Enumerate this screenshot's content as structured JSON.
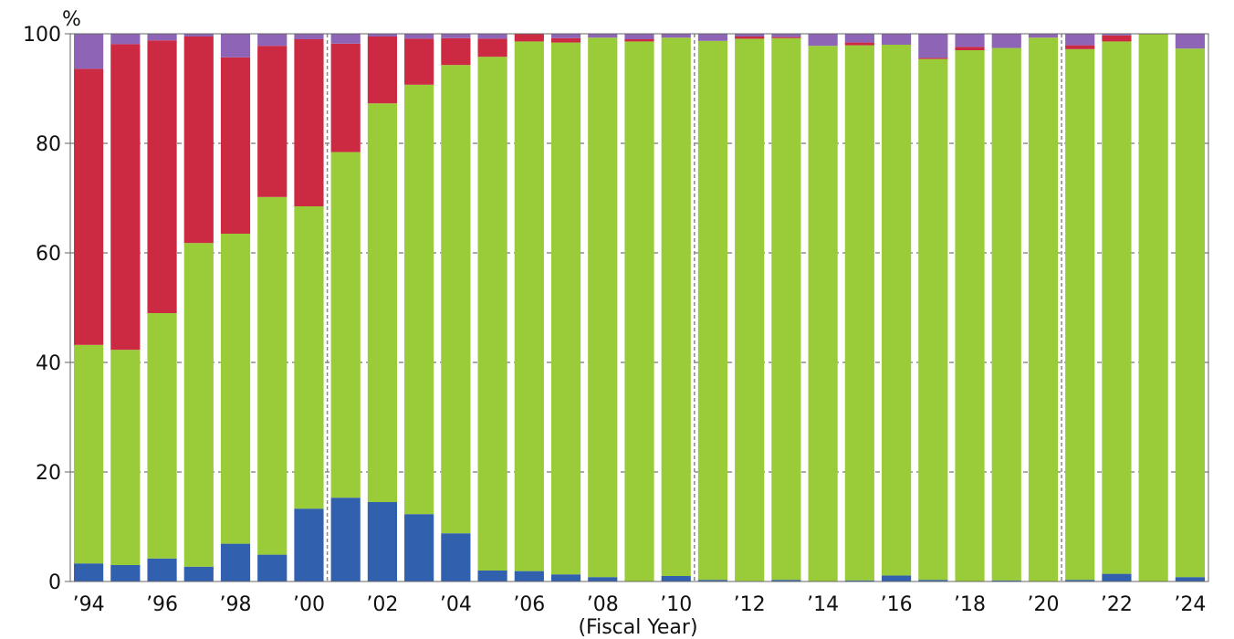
{
  "chart_data": {
    "type": "bar",
    "stacked": true,
    "xlabel": "(Fiscal Year)",
    "ylabel": "%",
    "ylim": [
      0,
      100
    ],
    "yticks": [
      0,
      20,
      40,
      60,
      80,
      100
    ],
    "grid": "horizontal dashed",
    "categories": [
      "1994",
      "1995",
      "1996",
      "1997",
      "1998",
      "1999",
      "2000",
      "2001",
      "2002",
      "2003",
      "2004",
      "2005",
      "2006",
      "2007",
      "2008",
      "2009",
      "2010",
      "2011",
      "2012",
      "2013",
      "2014",
      "2015",
      "2016",
      "2017",
      "2018",
      "2019",
      "2020",
      "2021",
      "2022",
      "2023",
      "2024"
    ],
    "tick_labels": [
      "’94",
      "’96",
      "’98",
      "’00",
      "’02",
      "’04",
      "’06",
      "’08",
      "’10",
      "’12",
      "’14",
      "’16",
      "’18",
      "’20",
      "’22",
      "’24"
    ],
    "divider_after": [
      "2000",
      "2010",
      "2020"
    ],
    "series": [
      {
        "color": "#3060AE",
        "values": [
          3.3,
          3.0,
          4.2,
          2.7,
          6.9,
          4.9,
          13.3,
          15.3,
          14.5,
          12.3,
          8.8,
          2.0,
          1.9,
          1.3,
          0.8,
          0.0,
          1.0,
          0.3,
          0.1,
          0.3,
          0.0,
          0.2,
          1.1,
          0.3,
          0.0,
          0.2,
          0.0,
          0.3,
          1.4,
          0.0,
          0.8
        ]
      },
      {
        "color": "#99CC38",
        "values": [
          39.9,
          39.3,
          44.8,
          59.1,
          56.6,
          65.3,
          55.2,
          63.1,
          72.8,
          78.4,
          85.5,
          93.8,
          96.7,
          97.1,
          98.5,
          98.6,
          98.3,
          98.4,
          99.0,
          98.9,
          97.8,
          97.7,
          96.9,
          95.1,
          97.0,
          97.2,
          99.3,
          96.9,
          97.2,
          100.0,
          96.5
        ]
      },
      {
        "color": "#CC2A42",
        "values": [
          50.4,
          55.8,
          49.8,
          37.7,
          32.2,
          27.6,
          30.5,
          19.8,
          12.2,
          8.4,
          4.9,
          3.3,
          1.4,
          0.8,
          0.0,
          0.4,
          0.0,
          0.0,
          0.4,
          0.2,
          0.0,
          0.5,
          0.0,
          0.2,
          0.6,
          0.0,
          0.0,
          0.7,
          1.1,
          0.0,
          0.0
        ]
      },
      {
        "color": "#8E64B6",
        "values": [
          6.4,
          1.9,
          1.2,
          0.5,
          4.3,
          2.2,
          1.0,
          1.8,
          0.5,
          0.9,
          0.8,
          0.9,
          0.0,
          0.8,
          0.7,
          1.0,
          0.7,
          1.3,
          0.5,
          0.6,
          2.2,
          1.6,
          2.0,
          4.4,
          2.4,
          2.6,
          0.7,
          2.1,
          0.3,
          0.0,
          2.7
        ]
      }
    ]
  },
  "colors": {
    "axis": "#666666",
    "grid": "#555555",
    "divider": "#888888"
  }
}
